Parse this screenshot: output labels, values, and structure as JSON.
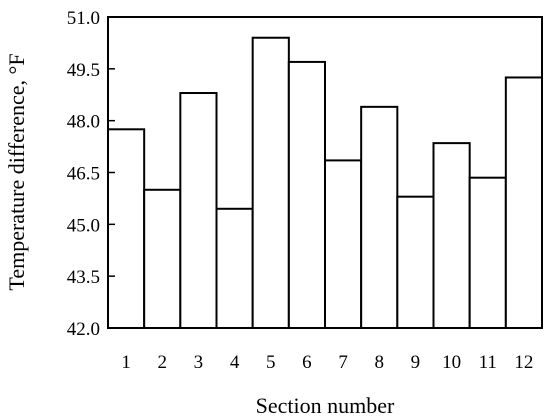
{
  "chart_data": {
    "type": "bar",
    "title": "",
    "xlabel": "Section number",
    "ylabel": "Temperature difference, °F",
    "categories": [
      "1",
      "2",
      "3",
      "4",
      "5",
      "6",
      "7",
      "8",
      "9",
      "10",
      "11",
      "12"
    ],
    "values": [
      47.75,
      46.0,
      48.8,
      45.45,
      50.4,
      49.7,
      46.85,
      48.4,
      45.8,
      47.35,
      46.35,
      49.25
    ],
    "ylim": [
      42.0,
      51.0
    ],
    "yticks": [
      "42.0",
      "43.5",
      "45.0",
      "46.5",
      "48.0",
      "49.5",
      "51.0"
    ],
    "grid": false,
    "legend": "none",
    "bar_fill": "#ffffff",
    "bar_stroke": "#000000"
  }
}
